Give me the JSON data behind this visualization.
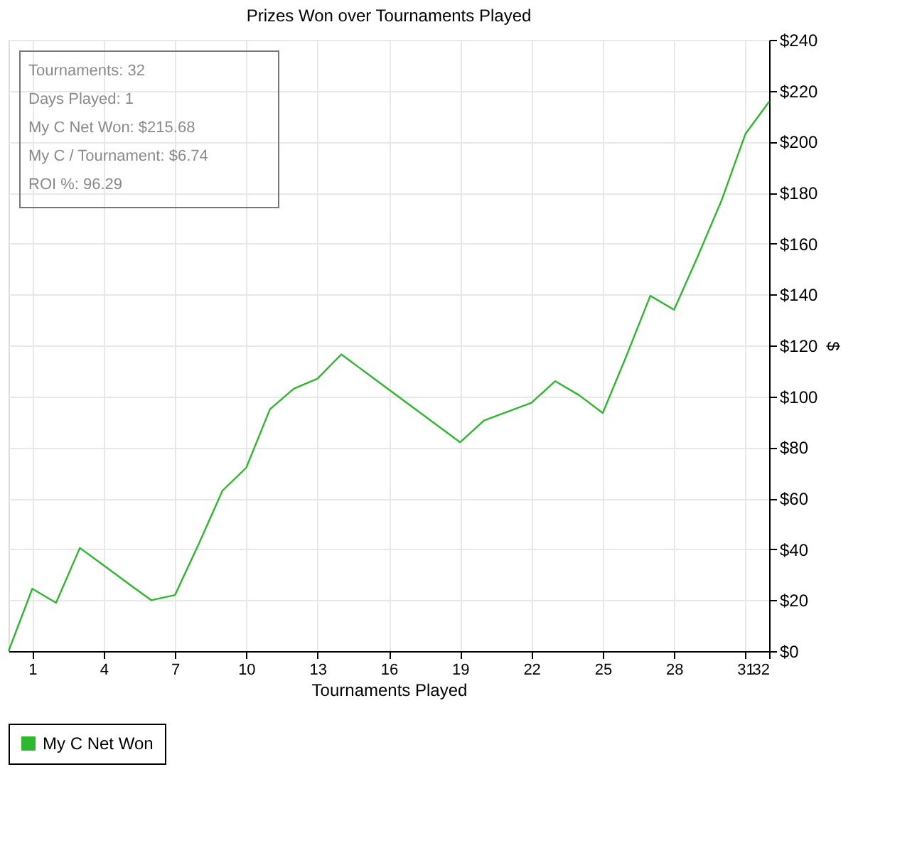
{
  "chart_data": {
    "type": "line",
    "title": "Prizes Won over Tournaments Played",
    "xlabel": "Tournaments Played",
    "ylabel": "$",
    "x": [
      0,
      1,
      2,
      3,
      4,
      5,
      6,
      7,
      8,
      9,
      10,
      11,
      12,
      13,
      14,
      15,
      16,
      17,
      18,
      19,
      20,
      21,
      22,
      23,
      24,
      25,
      26,
      27,
      28,
      29,
      30,
      31,
      32
    ],
    "series": [
      {
        "name": "My C Net Won",
        "color": "#2db82d",
        "values": [
          0,
          24.5,
          19,
          40.5,
          33.7,
          26.8,
          20,
          22,
          42,
          63,
          72,
          95,
          103,
          107,
          116.5,
          109.6,
          102.7,
          95.8,
          88.9,
          82,
          90.5,
          94,
          97.5,
          106,
          100.5,
          93.5,
          116,
          139.5,
          134,
          155,
          177,
          203,
          215.7
        ]
      }
    ],
    "xlim": [
      0,
      32
    ],
    "xticks": [
      1,
      4,
      7,
      10,
      13,
      16,
      19,
      22,
      25,
      28,
      31,
      32
    ],
    "ylim": [
      0,
      240
    ],
    "yticks": [
      {
        "value": 0,
        "label": "$0"
      },
      {
        "value": 20,
        "label": "$20"
      },
      {
        "value": 40,
        "label": "$40"
      },
      {
        "value": 60,
        "label": "$60"
      },
      {
        "value": 80,
        "label": "$80"
      },
      {
        "value": 100,
        "label": "$100"
      },
      {
        "value": 120,
        "label": "$120"
      },
      {
        "value": 140,
        "label": "$140"
      },
      {
        "value": 160,
        "label": "$160"
      },
      {
        "value": 180,
        "label": "$180"
      },
      {
        "value": 200,
        "label": "$200"
      },
      {
        "value": 220,
        "label": "$220"
      },
      {
        "value": 240,
        "label": "$240"
      }
    ],
    "annotations": [
      "Tournaments: 32",
      "Days Played: 1",
      "My C Net Won: $215.68",
      "My C / Tournament: $6.74",
      "ROI %: 96.29"
    ],
    "grid": true,
    "legend": "bottom left",
    "marker": "none",
    "line_style": "solid"
  }
}
